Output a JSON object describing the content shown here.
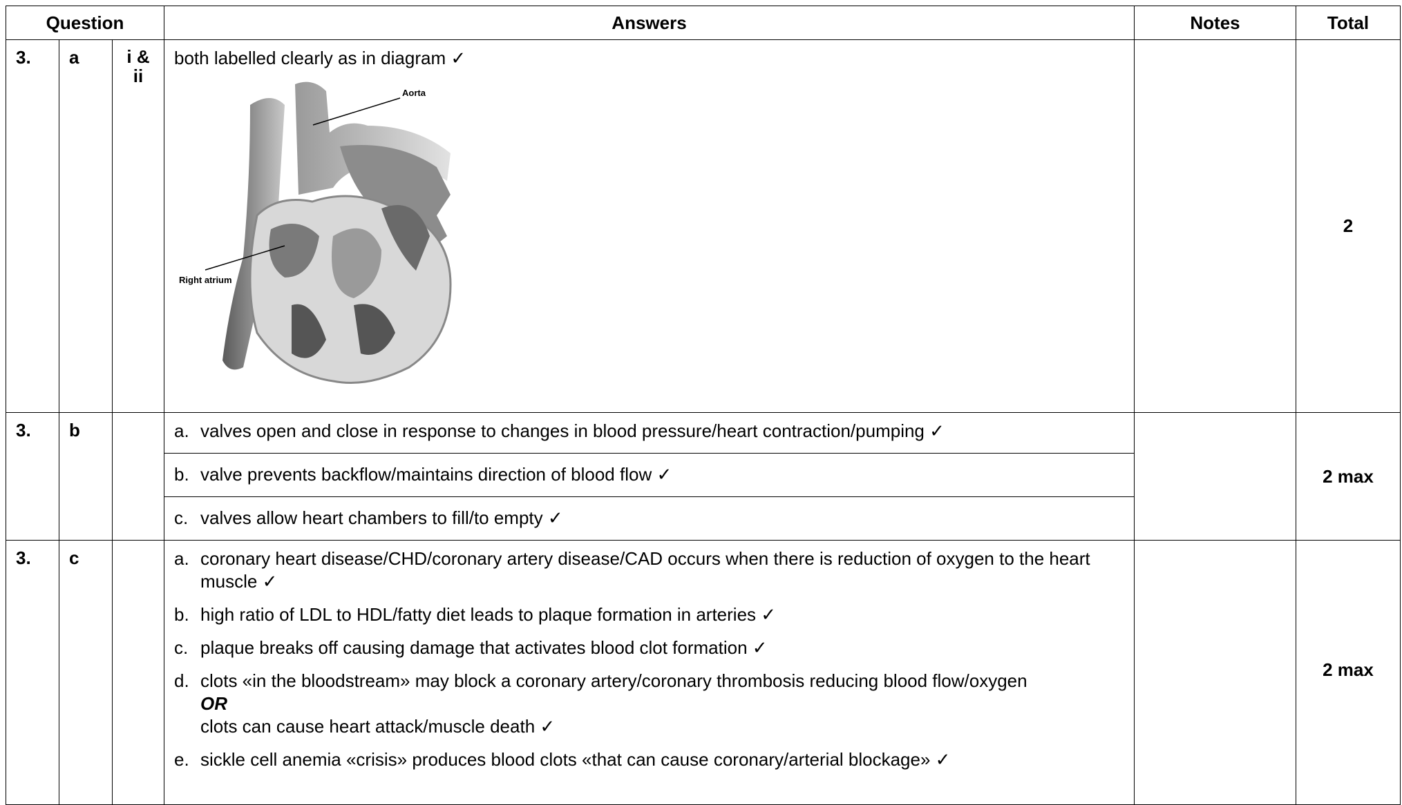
{
  "header": {
    "question": "Question",
    "answers": "Answers",
    "notes": "Notes",
    "total": "Total"
  },
  "rows": [
    {
      "number": "3.",
      "part": "a",
      "subpart": "i & ii",
      "answers": [
        {
          "text": "both labelled clearly as in diagram ✓"
        }
      ],
      "diagram": {
        "labels": [
          "Aorta",
          "Right atrium"
        ]
      },
      "total": "2"
    },
    {
      "number": "3.",
      "part": "b",
      "answers": [
        {
          "label": "a.",
          "text": "valves open and close in response to changes in blood pressure/heart contraction/pumping ✓"
        },
        {
          "label": "b.",
          "text": "valve prevents backflow/maintains direction of blood flow ✓"
        },
        {
          "label": "c.",
          "text": "valves allow heart chambers to fill/to empty ✓"
        }
      ],
      "total": "2 max"
    },
    {
      "number": "3.",
      "part": "c",
      "answers": [
        {
          "label": "a.",
          "text": "coronary heart disease/CHD/coronary artery disease/CAD occurs when there is reduction of oxygen to the heart muscle ✓"
        },
        {
          "label": "b.",
          "text": "high ratio of LDL to HDL/fatty diet leads to plaque formation in arteries ✓"
        },
        {
          "label": "c.",
          "text": "plaque breaks off causing damage that activates blood clot formation ✓"
        },
        {
          "label": "d.",
          "text": "clots «in the bloodstream» may block a coronary artery/coronary thrombosis reducing blood flow/oxygen",
          "or": "OR",
          "text2": "clots can cause heart attack/muscle death ✓"
        },
        {
          "label": "e.",
          "text": "sickle cell anemia «crisis» produces blood clots «that can cause coronary/arterial blockage» ✓"
        }
      ],
      "total": "2 max"
    }
  ]
}
